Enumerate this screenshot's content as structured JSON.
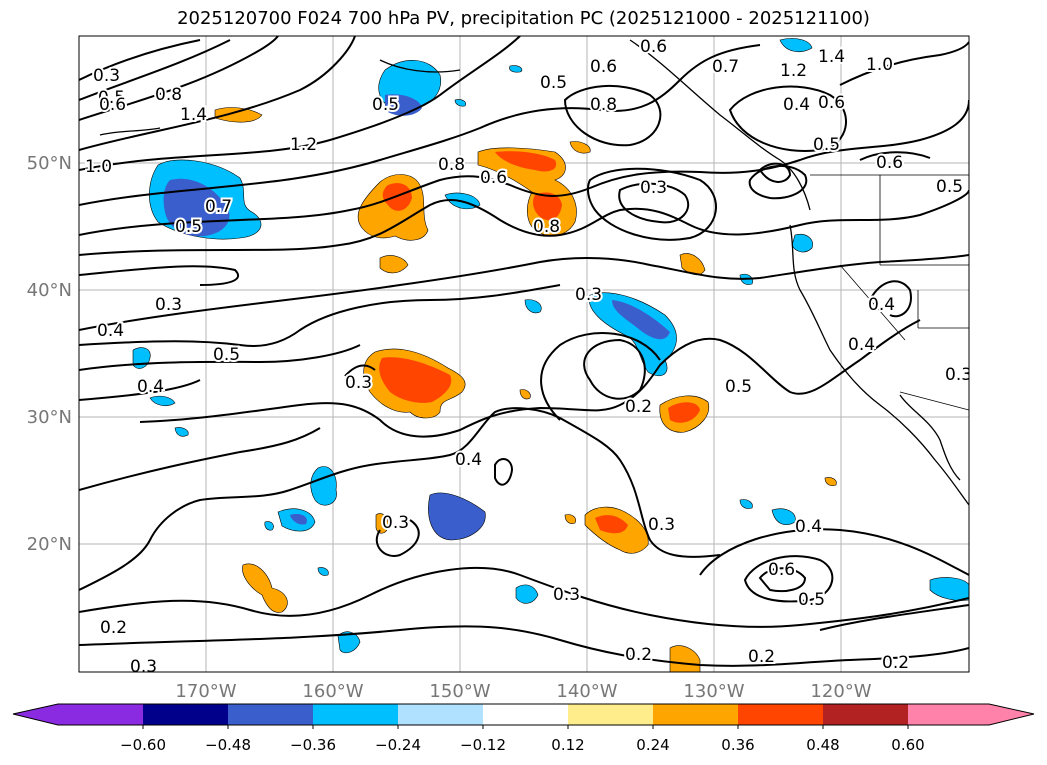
{
  "title": "2025120700 F024 700 hPa PV, precipitation PC (2025121000 - 2025121100)",
  "map": {
    "lon_ticks": [
      "170°W",
      "160°W",
      "150°W",
      "140°W",
      "130°W",
      "120°W"
    ],
    "lat_ticks": [
      "50°N",
      "40°N",
      "30°N",
      "20°N"
    ],
    "contour_labels": [
      "0.3",
      "0.5",
      "0.6",
      "0.8",
      "1.4",
      "1.0",
      "1.2",
      "0.7",
      "0.5",
      "0.3",
      "0.4",
      "0.5",
      "0.4",
      "0.3",
      "0.8",
      "0.6",
      "0.8",
      "0.6",
      "0.5",
      "0.8",
      "0.3",
      "0.5",
      "0.6",
      "0.7",
      "1.2",
      "1.4",
      "1.0",
      "0.6",
      "0.4",
      "0.5",
      "0.6",
      "0.5",
      "0.3",
      "0.4",
      "0.4",
      "0.3",
      "0.2",
      "0.5",
      "0.4",
      "0.3",
      "0.3",
      "0.4",
      "0.6",
      "0.5",
      "0.3",
      "0.2",
      "0.2",
      "0.2",
      "0.2",
      "0.3"
    ]
  },
  "colorbar": {
    "ticks": [
      "−0.60",
      "−0.48",
      "−0.36",
      "−0.24",
      "−0.12",
      "0.12",
      "0.24",
      "0.36",
      "0.48",
      "0.60"
    ],
    "colors": [
      "#8a2be2",
      "#00008b",
      "#3a5fcd",
      "#00bfff",
      "#b0e2ff",
      "#ffffff",
      "#ffec8b",
      "#ffa500",
      "#ff4500",
      "#b22222",
      "#ff82ab"
    ]
  }
}
